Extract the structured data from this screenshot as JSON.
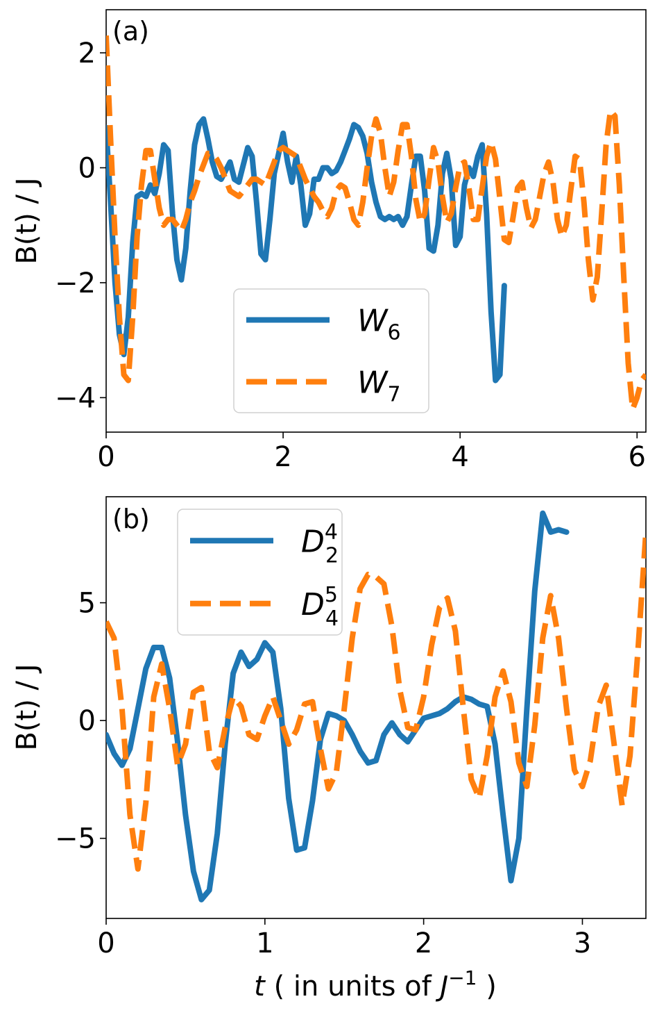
{
  "figure": {
    "xlabel": "t ( in units of J⁻¹ )",
    "xlabel_parts": {
      "t": "t",
      "rest": " ( in units of ",
      "j": "J",
      "exp": "−1",
      "close": " )"
    }
  },
  "colors": {
    "blue": "#1f77b4",
    "orange": "#ff7f0e"
  },
  "chart_data": [
    {
      "type": "line",
      "panel_label": "(a)",
      "ylabel": "B(t) / J",
      "xlabel": "",
      "xlim": [
        0,
        6.1
      ],
      "ylim": [
        -4.6,
        2.75
      ],
      "xticks": [
        0,
        2,
        4,
        6
      ],
      "yticks": [
        -4,
        -2,
        0,
        2
      ],
      "xtick_labels": [
        "0",
        "2",
        "4",
        "6"
      ],
      "ytick_labels": [
        "−4",
        "−2",
        "0",
        "2"
      ],
      "legend_position": "lower-center",
      "series": [
        {
          "name": "W6",
          "sym": "W",
          "sub": "6",
          "sup": "",
          "color": "#1f77b4",
          "style": "solid",
          "x": [
            0,
            0.05,
            0.1,
            0.15,
            0.2,
            0.25,
            0.3,
            0.35,
            0.4,
            0.45,
            0.5,
            0.55,
            0.6,
            0.65,
            0.7,
            0.75,
            0.8,
            0.85,
            0.9,
            0.95,
            1.0,
            1.05,
            1.1,
            1.15,
            1.2,
            1.25,
            1.3,
            1.35,
            1.4,
            1.45,
            1.5,
            1.55,
            1.6,
            1.65,
            1.7,
            1.75,
            1.8,
            1.85,
            1.9,
            1.95,
            2.0,
            2.05,
            2.1,
            2.15,
            2.2,
            2.25,
            2.3,
            2.35,
            2.4,
            2.45,
            2.5,
            2.55,
            2.6,
            2.65,
            2.7,
            2.75,
            2.8,
            2.85,
            2.9,
            2.95,
            3.0,
            3.05,
            3.1,
            3.15,
            3.2,
            3.25,
            3.3,
            3.35,
            3.4,
            3.45,
            3.5,
            3.55,
            3.6,
            3.65,
            3.7,
            3.75,
            3.8,
            3.85,
            3.9,
            3.95,
            4.0,
            4.05,
            4.1,
            4.15,
            4.2,
            4.25,
            4.3,
            4.35,
            4.4,
            4.45,
            4.5
          ],
          "y": [
            0.7,
            -0.6,
            -2.0,
            -2.9,
            -3.25,
            -2.6,
            -1.3,
            -0.5,
            -0.45,
            -0.5,
            -0.3,
            -0.45,
            -0.1,
            0.4,
            0.3,
            -0.8,
            -1.6,
            -1.95,
            -1.4,
            -0.4,
            0.4,
            0.75,
            0.85,
            0.5,
            0.1,
            -0.15,
            -0.2,
            -0.05,
            0.1,
            -0.2,
            -0.25,
            0.05,
            0.35,
            0.2,
            -0.6,
            -1.5,
            -1.6,
            -0.9,
            -0.1,
            0.25,
            0.6,
            0.1,
            -0.25,
            0.2,
            -0.3,
            -1.0,
            -0.8,
            -0.2,
            -0.2,
            0.0,
            0.0,
            -0.1,
            -0.05,
            0.1,
            0.3,
            0.5,
            0.75,
            0.7,
            0.55,
            0.25,
            -0.25,
            -0.6,
            -0.85,
            -0.9,
            -0.85,
            -0.9,
            -0.85,
            -1.0,
            -0.85,
            -0.3,
            0.2,
            0.2,
            -0.4,
            -1.4,
            -1.45,
            -1.0,
            -0.1,
            0.25,
            -0.2,
            -1.35,
            -1.2,
            -0.3,
            0.0,
            -0.15,
            0.2,
            0.4,
            -0.8,
            -2.5,
            -3.7,
            -3.6,
            -2.05
          ]
        },
        {
          "name": "W7",
          "sym": "W",
          "sub": "7",
          "sup": "",
          "color": "#ff7f0e",
          "style": "dashed",
          "x": [
            0,
            0.05,
            0.1,
            0.15,
            0.2,
            0.25,
            0.3,
            0.35,
            0.4,
            0.45,
            0.5,
            0.55,
            0.6,
            0.65,
            0.7,
            0.75,
            0.8,
            0.85,
            0.9,
            0.95,
            1.0,
            1.05,
            1.1,
            1.15,
            1.2,
            1.25,
            1.3,
            1.35,
            1.4,
            1.45,
            1.5,
            1.55,
            1.6,
            1.65,
            1.7,
            1.75,
            1.8,
            1.85,
            1.9,
            1.95,
            2.0,
            2.05,
            2.1,
            2.15,
            2.2,
            2.25,
            2.3,
            2.35,
            2.4,
            2.45,
            2.5,
            2.55,
            2.6,
            2.65,
            2.7,
            2.75,
            2.8,
            2.85,
            2.9,
            2.95,
            3.0,
            3.05,
            3.1,
            3.15,
            3.2,
            3.25,
            3.3,
            3.35,
            3.4,
            3.45,
            3.5,
            3.55,
            3.6,
            3.65,
            3.7,
            3.75,
            3.8,
            3.85,
            3.9,
            3.95,
            4.0,
            4.05,
            4.1,
            4.15,
            4.2,
            4.25,
            4.3,
            4.35,
            4.4,
            4.45,
            4.5,
            4.55,
            4.6,
            4.65,
            4.7,
            4.75,
            4.8,
            4.85,
            4.9,
            4.95,
            5.0,
            5.05,
            5.1,
            5.15,
            5.2,
            5.25,
            5.3,
            5.35,
            5.4,
            5.45,
            5.5,
            5.55,
            5.6,
            5.65,
            5.7,
            5.75,
            5.8,
            5.85,
            5.9,
            5.95,
            6.0,
            6.05,
            6.1
          ],
          "y": [
            2.3,
            0.5,
            -1.2,
            -2.6,
            -3.6,
            -3.7,
            -2.6,
            -1.2,
            -0.3,
            0.3,
            0.3,
            -0.2,
            -0.7,
            -1.0,
            -0.9,
            -0.9,
            -1.0,
            -1.1,
            -0.9,
            -0.6,
            -0.4,
            -0.15,
            0.05,
            0.25,
            0.25,
            0.15,
            0.0,
            -0.2,
            -0.4,
            -0.45,
            -0.5,
            -0.4,
            -0.3,
            -0.2,
            -0.2,
            -0.25,
            -0.3,
            -0.1,
            0.1,
            0.3,
            0.35,
            0.3,
            0.25,
            0.2,
            0.0,
            -0.2,
            -0.35,
            -0.5,
            -0.6,
            -0.75,
            -0.85,
            -0.7,
            -0.4,
            -0.3,
            -0.35,
            -0.6,
            -0.9,
            -1.0,
            -0.6,
            0.0,
            0.55,
            0.85,
            0.6,
            0.0,
            -0.5,
            -0.25,
            0.3,
            0.75,
            0.75,
            0.2,
            -0.55,
            -0.95,
            -0.8,
            -0.2,
            0.35,
            0.1,
            -0.5,
            -0.95,
            -0.8,
            -0.35,
            0.05,
            0.1,
            -0.35,
            -0.9,
            -0.9,
            -0.35,
            0.2,
            0.45,
            0.15,
            -0.55,
            -1.25,
            -1.3,
            -0.85,
            -0.35,
            -0.25,
            -0.7,
            -1.05,
            -0.9,
            -0.5,
            -0.1,
            0.1,
            -0.25,
            -0.9,
            -1.2,
            -1.0,
            -0.4,
            0.2,
            0.15,
            -0.6,
            -1.6,
            -2.3,
            -1.9,
            -0.8,
            0.4,
            1.0,
            0.9,
            -0.3,
            -1.9,
            -3.4,
            -4.2,
            -4.0,
            -3.7,
            -3.6
          ]
        }
      ]
    },
    {
      "type": "line",
      "panel_label": "(b)",
      "ylabel": "B(t) / J",
      "xlabel": "t ( in units of J⁻¹ )",
      "xlim": [
        0,
        3.4
      ],
      "ylim": [
        -8.4,
        9.5
      ],
      "xticks": [
        0,
        1,
        2,
        3
      ],
      "yticks": [
        -5,
        0,
        5
      ],
      "xtick_labels": [
        "0",
        "1",
        "2",
        "3"
      ],
      "ytick_labels": [
        "−5",
        "0",
        "5"
      ],
      "legend_position": "upper-left",
      "series": [
        {
          "name": "D_2^4",
          "sym": "D",
          "sub": "2",
          "sup": "4",
          "color": "#1f77b4",
          "style": "solid",
          "x": [
            0,
            0.05,
            0.1,
            0.15,
            0.2,
            0.25,
            0.3,
            0.35,
            0.4,
            0.45,
            0.5,
            0.55,
            0.6,
            0.65,
            0.7,
            0.75,
            0.8,
            0.85,
            0.9,
            0.95,
            1.0,
            1.05,
            1.1,
            1.15,
            1.2,
            1.25,
            1.3,
            1.35,
            1.4,
            1.45,
            1.5,
            1.55,
            1.6,
            1.65,
            1.7,
            1.75,
            1.8,
            1.85,
            1.9,
            1.95,
            2.0,
            2.05,
            2.1,
            2.15,
            2.2,
            2.25,
            2.3,
            2.35,
            2.4,
            2.45,
            2.5,
            2.55,
            2.6,
            2.65,
            2.7,
            2.75,
            2.8,
            2.85,
            2.9
          ],
          "y": [
            -0.6,
            -1.4,
            -1.9,
            -1.2,
            0.5,
            2.2,
            3.1,
            3.1,
            1.8,
            -0.9,
            -4.0,
            -6.4,
            -7.6,
            -7.2,
            -4.8,
            -1.0,
            2.0,
            2.9,
            2.3,
            2.6,
            3.3,
            2.9,
            0.5,
            -3.3,
            -5.5,
            -5.4,
            -3.4,
            -0.8,
            0.3,
            0.2,
            0.0,
            -0.6,
            -1.3,
            -1.8,
            -1.7,
            -0.6,
            -0.1,
            -0.6,
            -0.9,
            -0.4,
            0.1,
            0.2,
            0.3,
            0.5,
            0.8,
            1.0,
            0.9,
            0.7,
            0.6,
            -1.0,
            -4.0,
            -6.8,
            -5.0,
            0.5,
            5.5,
            8.8,
            8.0,
            8.1,
            8.0
          ]
        },
        {
          "name": "D_4^5",
          "sym": "D",
          "sub": "4",
          "sup": "5",
          "color": "#ff7f0e",
          "style": "dashed",
          "x": [
            0,
            0.05,
            0.1,
            0.15,
            0.2,
            0.25,
            0.3,
            0.35,
            0.4,
            0.45,
            0.5,
            0.55,
            0.6,
            0.65,
            0.7,
            0.75,
            0.8,
            0.85,
            0.9,
            0.95,
            1.0,
            1.05,
            1.1,
            1.15,
            1.2,
            1.25,
            1.3,
            1.35,
            1.4,
            1.45,
            1.5,
            1.55,
            1.6,
            1.65,
            1.7,
            1.75,
            1.8,
            1.85,
            1.9,
            1.95,
            2.0,
            2.05,
            2.1,
            2.15,
            2.2,
            2.25,
            2.3,
            2.35,
            2.4,
            2.45,
            2.5,
            2.55,
            2.6,
            2.65,
            2.7,
            2.75,
            2.8,
            2.85,
            2.9,
            2.95,
            3.0,
            3.05,
            3.1,
            3.15,
            3.2,
            3.25,
            3.3,
            3.35,
            3.4
          ],
          "y": [
            4.2,
            3.5,
            0.5,
            -4.0,
            -6.3,
            -3.5,
            1.0,
            2.4,
            0.5,
            -1.9,
            -1.0,
            1.2,
            1.4,
            -1.3,
            -2.0,
            -0.3,
            1.0,
            0.6,
            -0.6,
            -0.8,
            0.2,
            1.0,
            0.0,
            -1.0,
            -0.4,
            0.7,
            0.8,
            -1.2,
            -2.9,
            -2.2,
            0.5,
            3.5,
            5.6,
            6.2,
            6.1,
            5.8,
            4.0,
            1.3,
            -0.3,
            -0.4,
            1.0,
            3.2,
            4.8,
            5.2,
            3.8,
            0.5,
            -2.5,
            -3.3,
            -1.5,
            1.0,
            2.1,
            0.8,
            -1.8,
            -2.8,
            -0.2,
            3.5,
            5.3,
            3.5,
            0.5,
            -2.1,
            -2.8,
            -1.7,
            0.6,
            1.5,
            -1.0,
            -3.6,
            -1.5,
            3.0,
            8.0
          ]
        }
      ]
    }
  ]
}
